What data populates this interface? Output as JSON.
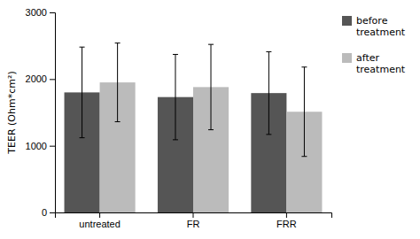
{
  "chart_data": {
    "type": "bar",
    "categories": [
      "untreated",
      "FR",
      "FRR"
    ],
    "series": [
      {
        "name": "before\ntreatment",
        "color": "#555555",
        "values": [
          1800,
          1730,
          1790
        ],
        "errors": [
          680,
          640,
          620
        ]
      },
      {
        "name": "after\ntreatment",
        "color": "#bbbbbb",
        "values": [
          1950,
          1880,
          1510
        ],
        "errors": [
          590,
          640,
          670
        ]
      }
    ],
    "ylabel": "TEER (Ohm*cm²)",
    "ylim": [
      0,
      3000
    ],
    "yticks": [
      0,
      1000,
      2000,
      3000
    ],
    "legend": "right",
    "grid": false
  }
}
